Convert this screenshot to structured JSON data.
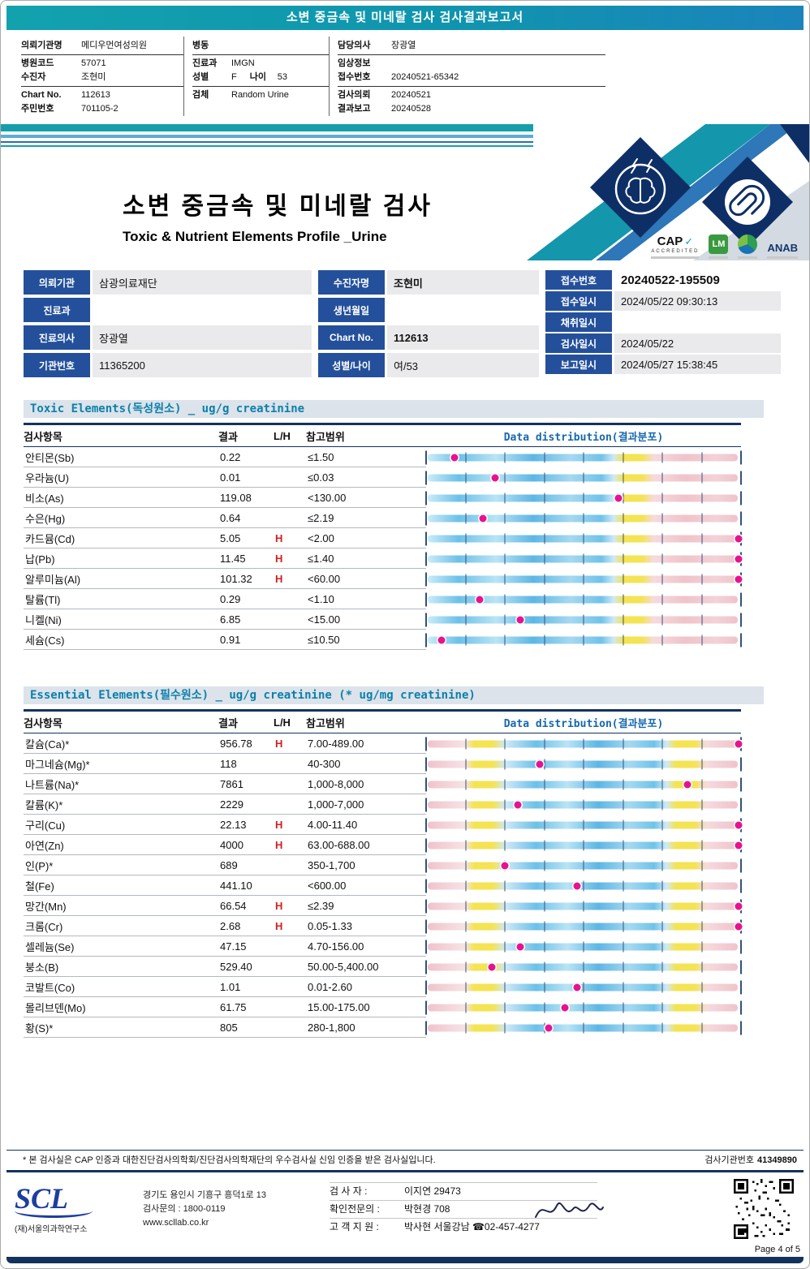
{
  "colors": {
    "banner_teal": "#12a2ae",
    "label_navy": "#24509b",
    "section_text": "#0d80ab",
    "flag_high_red": "#d21f1f",
    "marker_magenta": "#e61390",
    "bar_yellow": "#f4e352",
    "bar_blue": "#5eb6e4",
    "bar_pink": "#efc3ca",
    "footer_navy": "#14335c"
  },
  "icons": {
    "check": "✓",
    "phone": "☎"
  },
  "banner": {
    "title": "소변 중금속 및 미네랄 검사 검사결과보고서"
  },
  "patient_header": {
    "col1": [
      {
        "label": "의뢰기관명",
        "value": "메디우먼여성의원"
      },
      {
        "label": "병원코드",
        "value": "57071"
      },
      {
        "label": "수진자",
        "value": "조현미"
      },
      {
        "label": "Chart No.",
        "value": "112613"
      },
      {
        "label": "주민번호",
        "value": "701105-2"
      }
    ],
    "col2": [
      {
        "label": "병동",
        "value": ""
      },
      {
        "label": "진료과",
        "value": "IMGN"
      },
      {
        "label": "성별",
        "value": "F",
        "label2": "나이",
        "value2": "53"
      },
      {
        "label": "검체",
        "value": "Random Urine"
      }
    ],
    "col3": [
      {
        "label": "담당의사",
        "value": "장광열"
      },
      {
        "label": "임상정보",
        "value": ""
      },
      {
        "label": "접수번호",
        "value": "20240521-65342"
      },
      {
        "label": "검사의뢰",
        "value": "20240521"
      },
      {
        "label": "결과보고",
        "value": "20240528"
      }
    ]
  },
  "title_block": {
    "title": "소변 중금속 및 미네랄 검사",
    "subtitle": "Toxic & Nutrient Elements Profile _Urine",
    "logos": {
      "cap": "CAP",
      "cap_sub": "ACCREDITED",
      "lm": "LM",
      "anab": "ANAB"
    }
  },
  "info_table": {
    "colA": [
      {
        "label": "의뢰기관",
        "value": "삼광의료재단"
      },
      {
        "label": "진료과",
        "value": ""
      },
      {
        "label": "진료의사",
        "value": "장광열"
      },
      {
        "label": "기관번호",
        "value": "11365200"
      }
    ],
    "colB": [
      {
        "label": "수진자명",
        "value": "조현미",
        "strong": true
      },
      {
        "label": "생년월일",
        "value": ""
      },
      {
        "label": "Chart No.",
        "value": "112613",
        "strong": true
      },
      {
        "label": "성별/나이",
        "value": "여/53"
      }
    ],
    "colC": [
      {
        "label": "접수번호",
        "value": "20240522-195509",
        "bold": true
      },
      {
        "label": "접수일시",
        "value": "2024/05/22 09:30:13"
      },
      {
        "label": "채취일시",
        "value": ""
      },
      {
        "label": "검사일시",
        "value": "2024/05/22"
      },
      {
        "label": "보고일시",
        "value": "2024/05/27 15:38:45"
      }
    ]
  },
  "toxic_section": {
    "header": "Toxic Elements(독성원소) _ ug/g creatinine",
    "columns": [
      "검사항목",
      "결과",
      "L/H",
      "참고범위"
    ],
    "dist_header": "Data distribution(결과분포)",
    "rows": [
      {
        "name": "안티몬(Sb)",
        "result": "0.22",
        "flag": "",
        "range": "≤1.50",
        "pos": 9
      },
      {
        "name": "우라늄(U)",
        "result": "0.01",
        "flag": "",
        "range": "≤0.03",
        "pos": 22
      },
      {
        "name": "비소(As)",
        "result": "119.08",
        "flag": "",
        "range": "<130.00",
        "pos": 61
      },
      {
        "name": "수은(Hg)",
        "result": "0.64",
        "flag": "",
        "range": "≤2.19",
        "pos": 18
      },
      {
        "name": "카드뮴(Cd)",
        "result": "5.05",
        "flag": "H",
        "range": "<2.00",
        "pos": 100
      },
      {
        "name": "납(Pb)",
        "result": "11.45",
        "flag": "H",
        "range": "≤1.40",
        "pos": 100
      },
      {
        "name": "알루미늄(Al)",
        "result": "101.32",
        "flag": "H",
        "range": "<60.00",
        "pos": 100
      },
      {
        "name": "탈륨(Tl)",
        "result": "0.29",
        "flag": "",
        "range": "<1.10",
        "pos": 17
      },
      {
        "name": "니켈(Ni)",
        "result": "6.85",
        "flag": "",
        "range": "<15.00",
        "pos": 30
      },
      {
        "name": "세슘(Cs)",
        "result": "0.91",
        "flag": "",
        "range": "≤10.50",
        "pos": 5
      }
    ]
  },
  "essential_section": {
    "header": "Essential Elements(필수원소) _ ug/g creatinine (* ug/mg creatinine)",
    "columns": [
      "검사항목",
      "결과",
      "L/H",
      "참고범위"
    ],
    "dist_header": "Data distribution(결과분포)",
    "rows": [
      {
        "name": "칼슘(Ca)*",
        "result": "956.78",
        "flag": "H",
        "range": "7.00-489.00",
        "pos": 100
      },
      {
        "name": "마그네슘(Mg)*",
        "result": "118",
        "flag": "",
        "range": "40-300",
        "pos": 36
      },
      {
        "name": "나트륨(Na)*",
        "result": "7861",
        "flag": "",
        "range": "1,000-8,000",
        "pos": 83
      },
      {
        "name": "칼륨(K)*",
        "result": "2229",
        "flag": "",
        "range": "1,000-7,000",
        "pos": 29
      },
      {
        "name": "구리(Cu)",
        "result": "22.13",
        "flag": "H",
        "range": "4.00-11.40",
        "pos": 100
      },
      {
        "name": "아연(Zn)",
        "result": "4000",
        "flag": "H",
        "range": "63.00-688.00",
        "pos": 100
      },
      {
        "name": "인(P)*",
        "result": "689",
        "flag": "",
        "range": "350-1,700",
        "pos": 25
      },
      {
        "name": "철(Fe)",
        "result": "441.10",
        "flag": "",
        "range": "<600.00",
        "pos": 48
      },
      {
        "name": "망간(Mn)",
        "result": "66.54",
        "flag": "H",
        "range": "≤2.39",
        "pos": 100
      },
      {
        "name": "크롬(Cr)",
        "result": "2.68",
        "flag": "H",
        "range": "0.05-1.33",
        "pos": 100
      },
      {
        "name": "셀레늄(Se)",
        "result": "47.15",
        "flag": "",
        "range": "4.70-156.00",
        "pos": 30
      },
      {
        "name": "붕소(B)",
        "result": "529.40",
        "flag": "",
        "range": "50.00-5,400.00",
        "pos": 21
      },
      {
        "name": "코발트(Co)",
        "result": "1.01",
        "flag": "",
        "range": "0.01-2.60",
        "pos": 48
      },
      {
        "name": "몰리브덴(Mo)",
        "result": "61.75",
        "flag": "",
        "range": "15.00-175.00",
        "pos": 44
      },
      {
        "name": "황(S)*",
        "result": "805",
        "flag": "",
        "range": "280-1,800",
        "pos": 39
      }
    ]
  },
  "footnote": {
    "text": "* 본 검사실은 CAP 인증과 대한진단검사의학회/진단검사의학재단의 우수검사실 신임 인증을 받은 검사실입니다.",
    "org_no_label": "검사기관번호",
    "org_no": "41349890"
  },
  "footer": {
    "logo": "SCL",
    "org": "(재)서울의과학연구소",
    "address": "경기도 용인시 기흥구 흥덕1로 13",
    "phone": "검사문의 : 1800-0119",
    "web": "www.scllab.co.kr",
    "staff": [
      {
        "label": "검 사 자 :",
        "value": "이지연 29473"
      },
      {
        "label": "확인전문의 :",
        "value": "박현경 708"
      },
      {
        "label": "고 객 지 원 :",
        "value": "박사현 서울강남 ☎02-457-4277"
      }
    ]
  },
  "page_footer": {
    "page": "Page 4 of 5"
  }
}
